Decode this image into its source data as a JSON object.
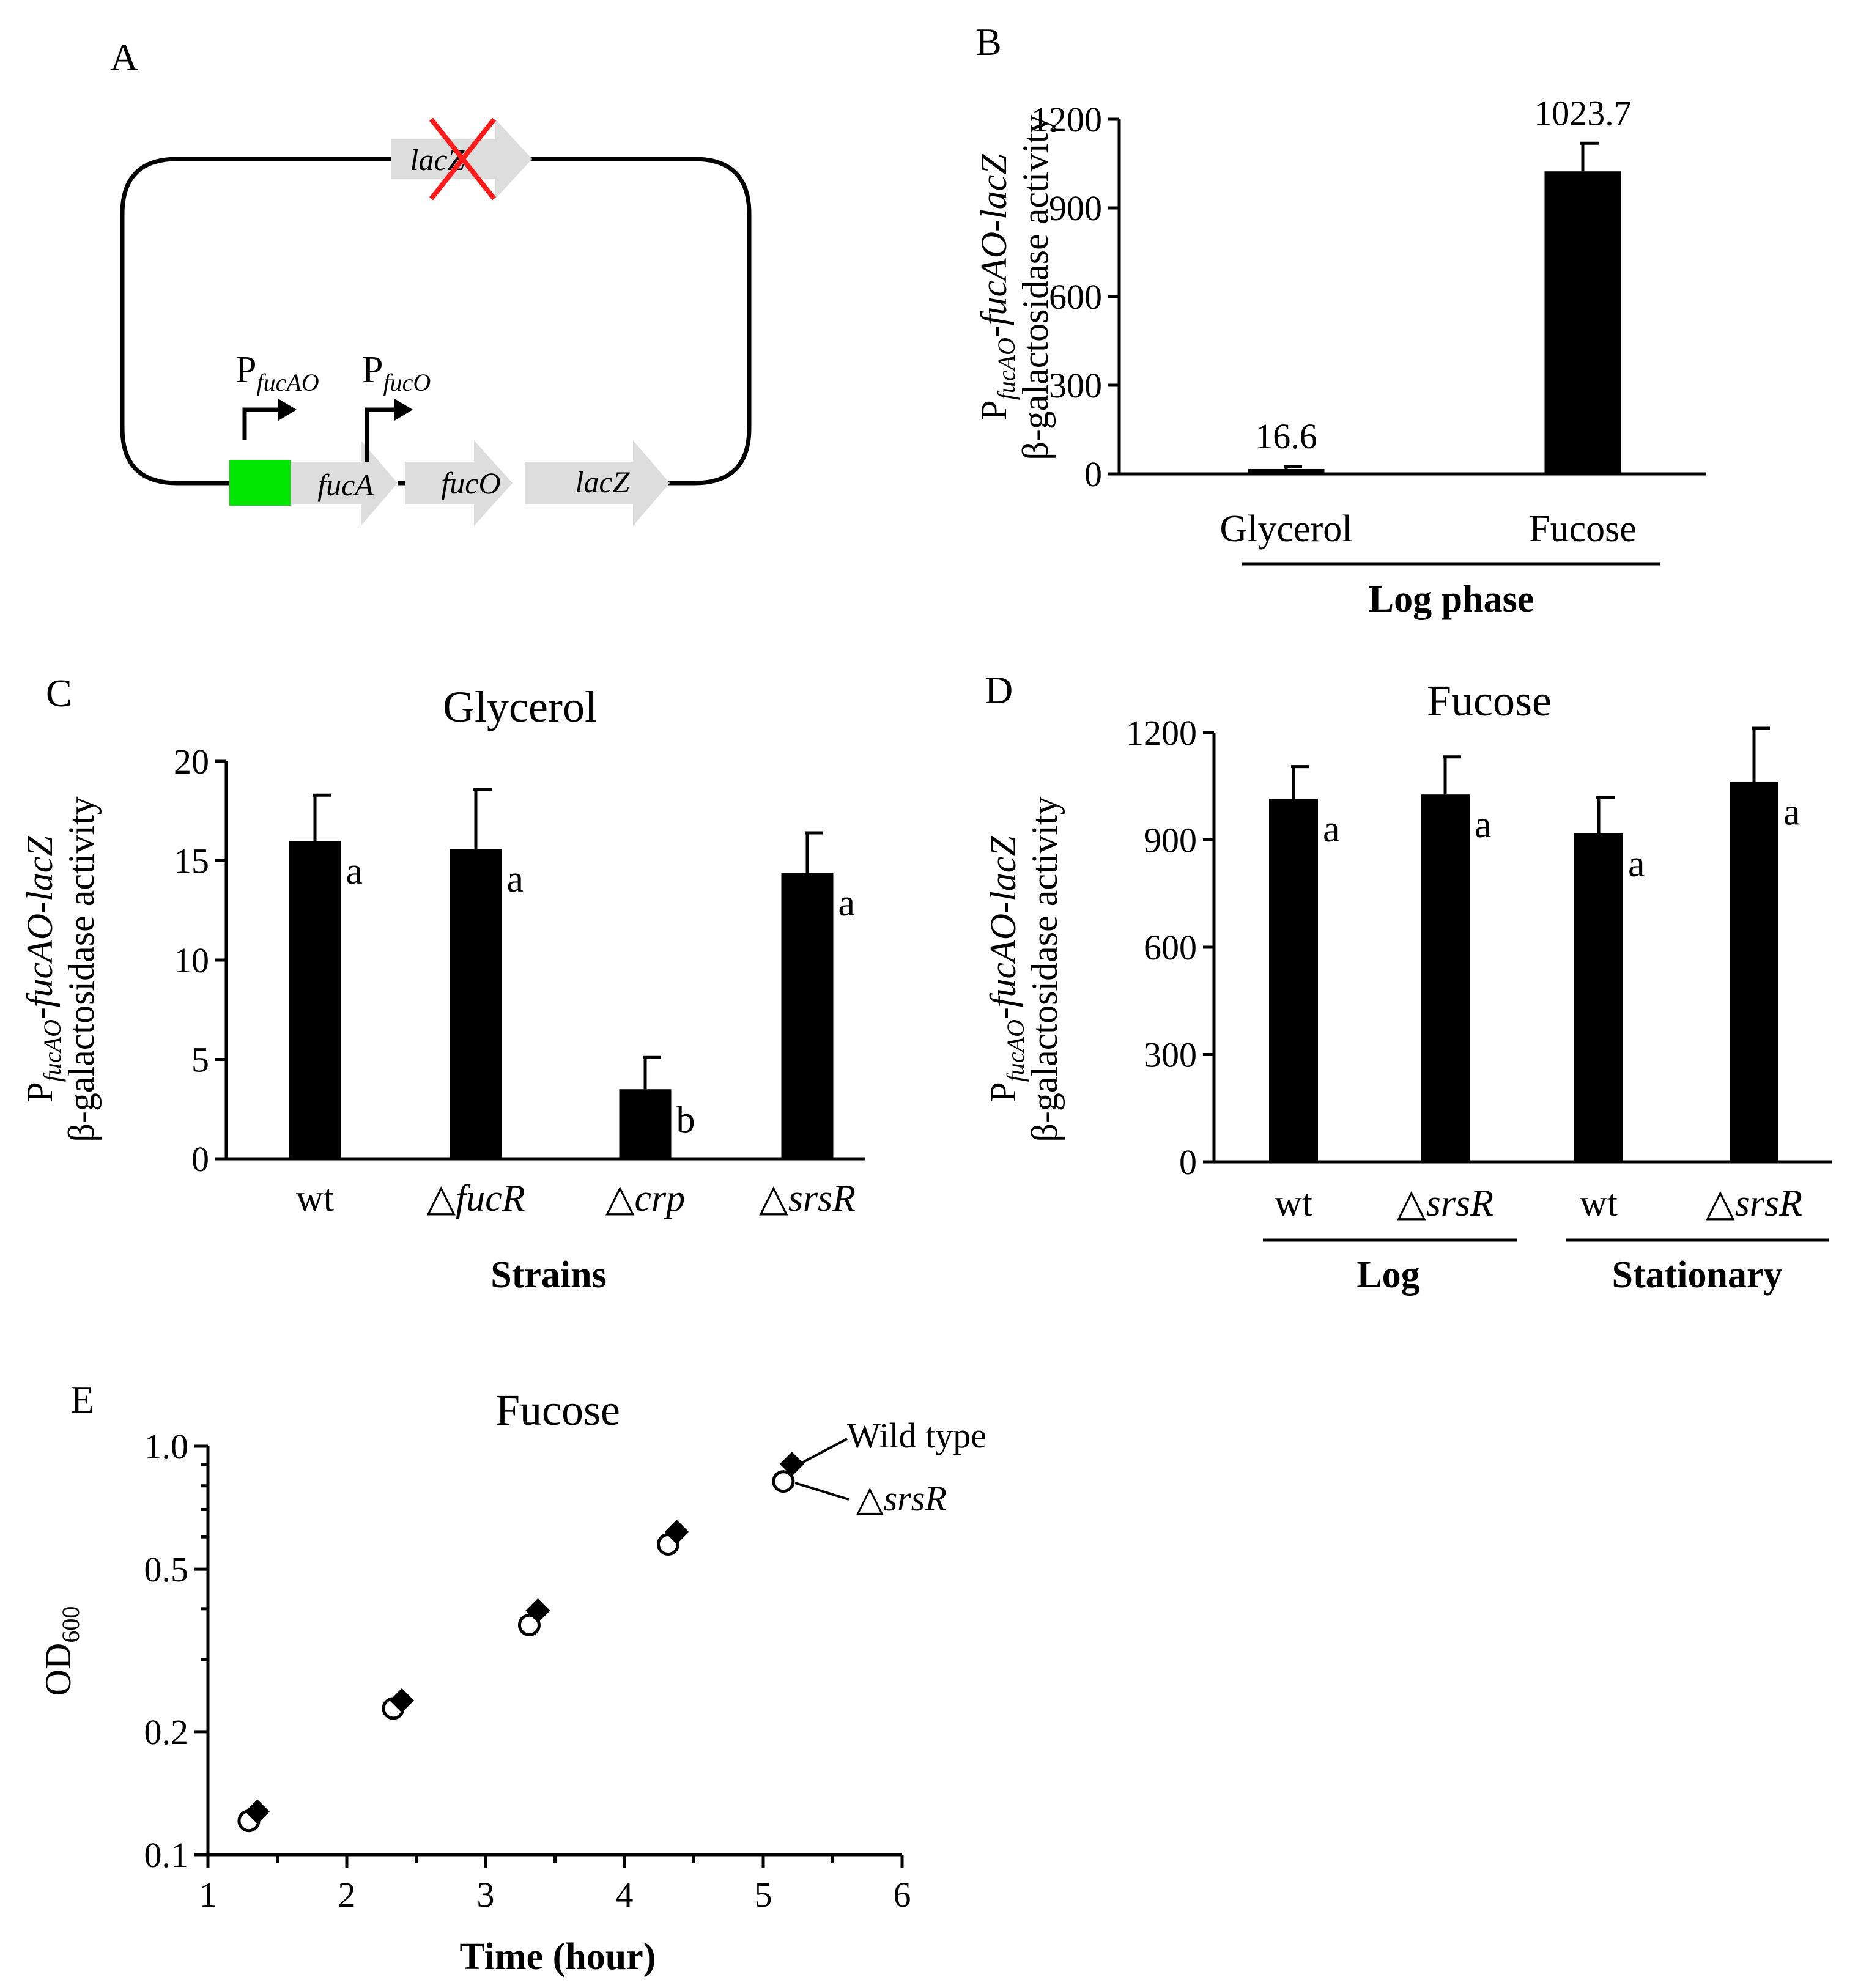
{
  "colors": {
    "bar": "#000000",
    "promoter_box": "#00e600",
    "arrow_gene": "#dddddd",
    "lacz_text": "#1f3fff",
    "deletion_cross": "#ff1a1a"
  },
  "panels": {
    "A": {
      "letter": "A",
      "promoter1_label": "P",
      "promoter1_sub": "fucAO",
      "promoter2_label": "P",
      "promoter2_sub": "fucO",
      "gene_fucA": "fucA",
      "gene_fucO": "fucO",
      "gene_lacZ": "lacZ",
      "gene_lacZ_deleted": "lacZ"
    },
    "B": {
      "letter": "B"
    },
    "C": {
      "letter": "C"
    },
    "D": {
      "letter": "D"
    },
    "E": {
      "letter": "E"
    }
  },
  "ylabel_common": {
    "line1_p": "P",
    "line1_sub": "fucAO",
    "line1_rest": "-fucAO-lacZ",
    "line2": "β-galactosidase activity"
  },
  "chart_data": [
    {
      "panel": "B",
      "type": "bar",
      "title": "",
      "categories": [
        "Glycerol",
        "Fucose"
      ],
      "values": [
        16.6,
        1023.7
      ],
      "errors": [
        8,
        95
      ],
      "value_labels": [
        "16.6",
        "1023.7"
      ],
      "ylim": [
        0,
        1200
      ],
      "yticks": [
        "0",
        "300",
        "600",
        "900",
        "1200"
      ],
      "group_label": "Log phase",
      "xlabel": "Log phase",
      "ylabel": "PfucAO-fucAO-lacZ β-galactosidase activity"
    },
    {
      "panel": "C",
      "type": "bar",
      "title": "Glycerol",
      "categories": [
        "wt",
        "△fucR",
        "△crp",
        "△srsR"
      ],
      "category_prefix": [
        "",
        "△",
        "△",
        "△"
      ],
      "category_name": [
        "wt",
        "fucR",
        "crp",
        "srsR"
      ],
      "category_italic": [
        false,
        true,
        true,
        true
      ],
      "values": [
        16.0,
        15.6,
        3.5,
        14.4
      ],
      "errors": [
        2.3,
        3.0,
        1.6,
        2.0
      ],
      "significance": [
        "a",
        "a",
        "b",
        "a"
      ],
      "ylim": [
        0,
        20
      ],
      "yticks": [
        "0",
        "5",
        "10",
        "15",
        "20"
      ],
      "xlabel": "Strains",
      "ylabel": "PfucAO-fucAO-lacZ β-galactosidase activity"
    },
    {
      "panel": "D",
      "type": "bar",
      "title": "Fucose",
      "categories": [
        "wt",
        "△srsR",
        "wt",
        "△srsR"
      ],
      "category_prefix": [
        "",
        "△",
        "",
        "△"
      ],
      "category_name": [
        "wt",
        "srsR",
        "wt",
        "srsR"
      ],
      "category_italic": [
        false,
        true,
        false,
        true
      ],
      "values": [
        1015,
        1027,
        918,
        1062
      ],
      "errors": [
        90,
        105,
        100,
        150
      ],
      "significance": [
        "a",
        "a",
        "a",
        "a"
      ],
      "groups": [
        "Log",
        "Stationary"
      ],
      "ylim": [
        0,
        1200
      ],
      "yticks": [
        "0",
        "300",
        "600",
        "900",
        "1200"
      ],
      "ylabel": "PfucAO-fucAO-lacZ β-galactosidase activity"
    },
    {
      "panel": "E",
      "type": "scatter",
      "title": "Fucose",
      "yscale": "log",
      "xlim": [
        1,
        6
      ],
      "ylim": [
        0.1,
        1.0
      ],
      "xticks": [
        "1",
        "2",
        "3",
        "4",
        "5",
        "6"
      ],
      "yticks": [
        "0.1",
        "0.2",
        "0.5",
        "1.0"
      ],
      "xlabel": "Time (hour)",
      "ylabel_main": "OD",
      "ylabel_sub": "600",
      "series": [
        {
          "name": "Wild type",
          "marker": "diamond-filled",
          "x": [
            1.33,
            2.37,
            3.35,
            4.35,
            5.18
          ],
          "y": [
            0.124,
            0.232,
            0.385,
            0.6,
            0.88
          ]
        },
        {
          "name": "△srsR",
          "marker": "circle-open",
          "x": [
            1.33,
            2.37,
            3.35,
            4.35,
            5.18
          ],
          "y": [
            0.121,
            0.228,
            0.365,
            0.575,
            0.82
          ]
        }
      ],
      "legend": {
        "wild_type": "Wild type",
        "mutant_prefix": "△",
        "mutant_name": "srsR"
      }
    }
  ]
}
